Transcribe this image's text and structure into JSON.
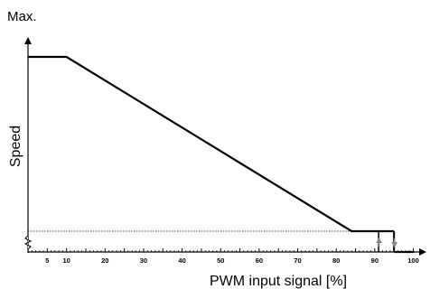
{
  "chart_data": {
    "type": "line",
    "ylabel": "Speed",
    "y_max_label": "Max.",
    "xlabel": "PWM input signal [%]",
    "xlim": [
      0,
      100
    ],
    "x_ticks": [
      5,
      10,
      20,
      30,
      40,
      50,
      60,
      70,
      80,
      90,
      100
    ],
    "x_tick_labels": [
      "5",
      "10",
      "20",
      "30",
      "40",
      "50",
      "60",
      "70",
      "80",
      "90",
      "100"
    ],
    "y_scale": "relative (Min ... Max)",
    "y_axis_broken": true,
    "series": [
      {
        "x": [
          0,
          10,
          84,
          95
        ],
        "y": [
          1.0,
          1.0,
          0.0,
          0.0
        ]
      }
    ],
    "hysteresis": {
      "stop_x": 95,
      "restart_x": 91,
      "arrow_up_x": 91,
      "arrow_down_x": 95
    },
    "min_speed_reference_line": true,
    "grid": false,
    "legend": "none"
  }
}
